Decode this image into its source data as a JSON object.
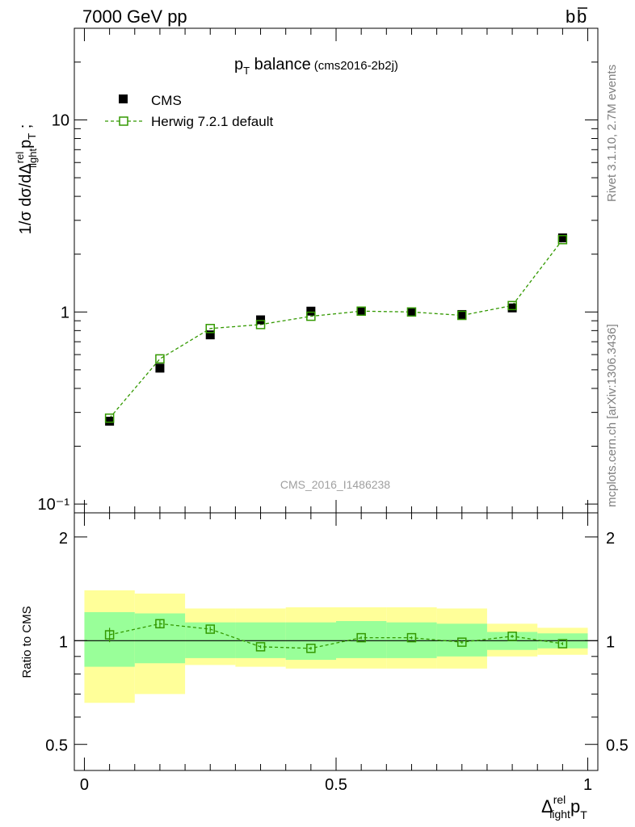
{
  "header": {
    "energy_label": "7000 GeV pp",
    "process_main": "b",
    "process_bar": "b"
  },
  "side": {
    "rivet_label": "Rivet 3.1.10,  2.7M events",
    "mcplots_label": "mcplots.cern.ch [arXiv:1306.3436]"
  },
  "main_plot": {
    "title_main": "p",
    "title_sub": "T",
    "title_word": " balance",
    "title_tag": "(cms2016-2b2j)",
    "watermark": "CMS_2016_I1486238",
    "ylabel_parts": {
      "a": "1/σ dσ/dΔ",
      "sup": "rel",
      "sub": "light",
      "b": "p",
      "sub2": "T",
      "c": " ;"
    }
  },
  "legend": {
    "cms_label": "CMS",
    "herwig_label": "Herwig 7.2.1 default"
  },
  "ratio_plot": {
    "ylabel": "Ratio to CMS"
  },
  "xaxis": {
    "label_parts": {
      "a": "Δ",
      "sup": "rel",
      "sub": "light",
      "b": "p",
      "sub2": "T"
    }
  },
  "colors": {
    "herwig": "#339900",
    "band_inner": "#99ff99",
    "band_outer": "#ffff99",
    "data": "#000000",
    "side_text": "#808080"
  },
  "chart_data": [
    {
      "type": "scatter",
      "scale": "log",
      "title": "pT balance (cms2016-2b2j)",
      "xlim": [
        -0.02,
        1.02
      ],
      "ylim": [
        0.09,
        30
      ],
      "y_ticks_major": [
        {
          "value": 0.1,
          "label": "10⁻¹"
        },
        {
          "value": 1,
          "label": "1"
        },
        {
          "value": 10,
          "label": "10"
        }
      ],
      "x_bin_centers": [
        0.05,
        0.15,
        0.25,
        0.35,
        0.45,
        0.55,
        0.65,
        0.75,
        0.85,
        0.95
      ],
      "series": [
        {
          "name": "CMS",
          "values": [
            0.27,
            0.51,
            0.76,
            0.91,
            1.01,
            1.01,
            1.0,
            0.97,
            1.05,
            2.43
          ],
          "errors": [
            0.01,
            0.01,
            0.02,
            0.02,
            0.02,
            0.02,
            0.02,
            0.02,
            0.02,
            0.05
          ]
        },
        {
          "name": "Herwig 7.2.1 default",
          "values": [
            0.28,
            0.57,
            0.82,
            0.86,
            0.95,
            1.01,
            1.0,
            0.96,
            1.08,
            2.38
          ]
        }
      ]
    },
    {
      "type": "scatter",
      "title": "Ratio to CMS",
      "xlim": [
        -0.02,
        1.02
      ],
      "ylim": [
        0.42,
        2.35
      ],
      "x_ticks": [
        {
          "value": 0,
          "label": "0"
        },
        {
          "value": 0.5,
          "label": "0.5"
        },
        {
          "value": 1,
          "label": "1"
        }
      ],
      "y_ticks_labeled": [
        {
          "value": 0.5,
          "label": "0.5"
        },
        {
          "value": 1,
          "label": "1"
        },
        {
          "value": 2,
          "label": "2"
        }
      ],
      "bins": [
        {
          "lo": 0.0,
          "hi": 0.1,
          "inner": [
            0.84,
            1.21
          ],
          "outer": [
            0.66,
            1.4
          ]
        },
        {
          "lo": 0.1,
          "hi": 0.2,
          "inner": [
            0.86,
            1.2
          ],
          "outer": [
            0.7,
            1.37
          ]
        },
        {
          "lo": 0.2,
          "hi": 0.3,
          "inner": [
            0.89,
            1.13
          ],
          "outer": [
            0.85,
            1.24
          ]
        },
        {
          "lo": 0.3,
          "hi": 0.4,
          "inner": [
            0.89,
            1.13
          ],
          "outer": [
            0.84,
            1.24
          ]
        },
        {
          "lo": 0.4,
          "hi": 0.5,
          "inner": [
            0.88,
            1.13
          ],
          "outer": [
            0.83,
            1.25
          ]
        },
        {
          "lo": 0.5,
          "hi": 0.6,
          "inner": [
            0.89,
            1.14
          ],
          "outer": [
            0.83,
            1.25
          ]
        },
        {
          "lo": 0.6,
          "hi": 0.7,
          "inner": [
            0.89,
            1.13
          ],
          "outer": [
            0.83,
            1.25
          ]
        },
        {
          "lo": 0.7,
          "hi": 0.8,
          "inner": [
            0.9,
            1.12
          ],
          "outer": [
            0.83,
            1.24
          ]
        },
        {
          "lo": 0.8,
          "hi": 0.9,
          "inner": [
            0.94,
            1.06
          ],
          "outer": [
            0.9,
            1.12
          ]
        },
        {
          "lo": 0.9,
          "hi": 1.0,
          "inner": [
            0.95,
            1.05
          ],
          "outer": [
            0.91,
            1.09
          ]
        }
      ],
      "x": [
        0.05,
        0.15,
        0.25,
        0.35,
        0.45,
        0.55,
        0.65,
        0.75,
        0.85,
        0.95
      ],
      "series": [
        {
          "name": "Herwig 7.2.1 default",
          "values": [
            1.04,
            1.12,
            1.08,
            0.96,
            0.95,
            1.02,
            1.02,
            0.99,
            1.03,
            0.98
          ],
          "errors": [
            0.05,
            0.03,
            0.02,
            0.01,
            0.01,
            0.01,
            0.01,
            0.01,
            0.01,
            0.01
          ]
        }
      ],
      "reference_line": 1
    }
  ]
}
